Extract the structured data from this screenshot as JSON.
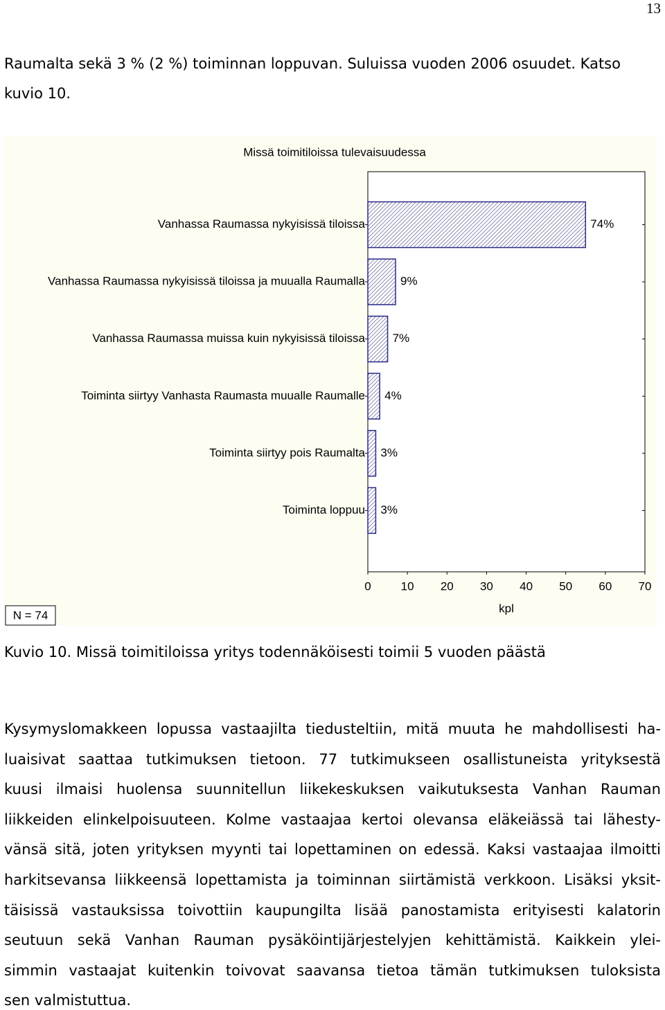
{
  "page_number": "13",
  "intro_lines": [
    "Raumalta sekä 3 % (2 %) toiminnan loppuvan. Suluissa vuoden 2006 osuudet. Katso",
    "kuvio 10."
  ],
  "chart_data": {
    "type": "bar",
    "orientation": "horizontal",
    "title": "Missä toimitiloissa tulevaisuudessa",
    "categories": [
      "Vanhassa Raumassa nykyisissä tiloissa",
      "Vanhassa Raumassa nykyisissä tiloissa ja muualla Raumalla",
      "Vanhassa Raumassa muissa kuin nykyisissä tiloissa",
      "Toiminta siirtyy Vanhasta Raumasta muualle Raumalle",
      "Toiminta siirtyy pois Raumalta",
      "Toiminta loppuu"
    ],
    "values": [
      55,
      7,
      5,
      3,
      2,
      2
    ],
    "value_labels": [
      "74%",
      "9%",
      "7%",
      "4%",
      "3%",
      "3%"
    ],
    "color": "#2a2a8a",
    "xlim": [
      0,
      70
    ],
    "xticks": [
      0,
      10,
      20,
      30,
      40,
      50,
      60,
      70
    ],
    "xlabel": "kpl",
    "annotation": "N = 74"
  },
  "caption": "Kuvio 10. Missä toimitiloissa yritys todennäköisesti toimii 5 vuoden päästä",
  "body_lines": [
    "Kysymyslomakkeen lopussa vastaajilta tiedusteltiin, mitä muuta he mahdollisesti ha-",
    "luaisivat saattaa tutkimuksen tietoon. 77 tutkimukseen osallistuneista yrityksestä",
    "kuusi ilmaisi huolensa suunnitellun liikekeskuksen vaikutuksesta Vanhan Rauman",
    "liikkeiden elinkelpoisuuteen. Kolme vastaajaa kertoi olevansa eläkeiässä tai lähesty-",
    "vänsä sitä, joten yrityksen myynti tai lopettaminen on edessä. Kaksi vastaajaa ilmoitti",
    "harkitsevansa liikkeensä lopettamista ja toiminnan siirtämistä verkkoon. Lisäksi yksit-",
    "täisissä vastauksissa toivottiin kaupungilta lisää panostamista erityisesti kalatorin",
    "seutuun sekä Vanhan Rauman pysäköintijärjestelyjen kehittämistä. Kaikkein ylei-",
    "simmin vastaajat kuitenkin toivovat saavansa tietoa tämän tutkimuksen tuloksista",
    "sen valmistuttua."
  ]
}
